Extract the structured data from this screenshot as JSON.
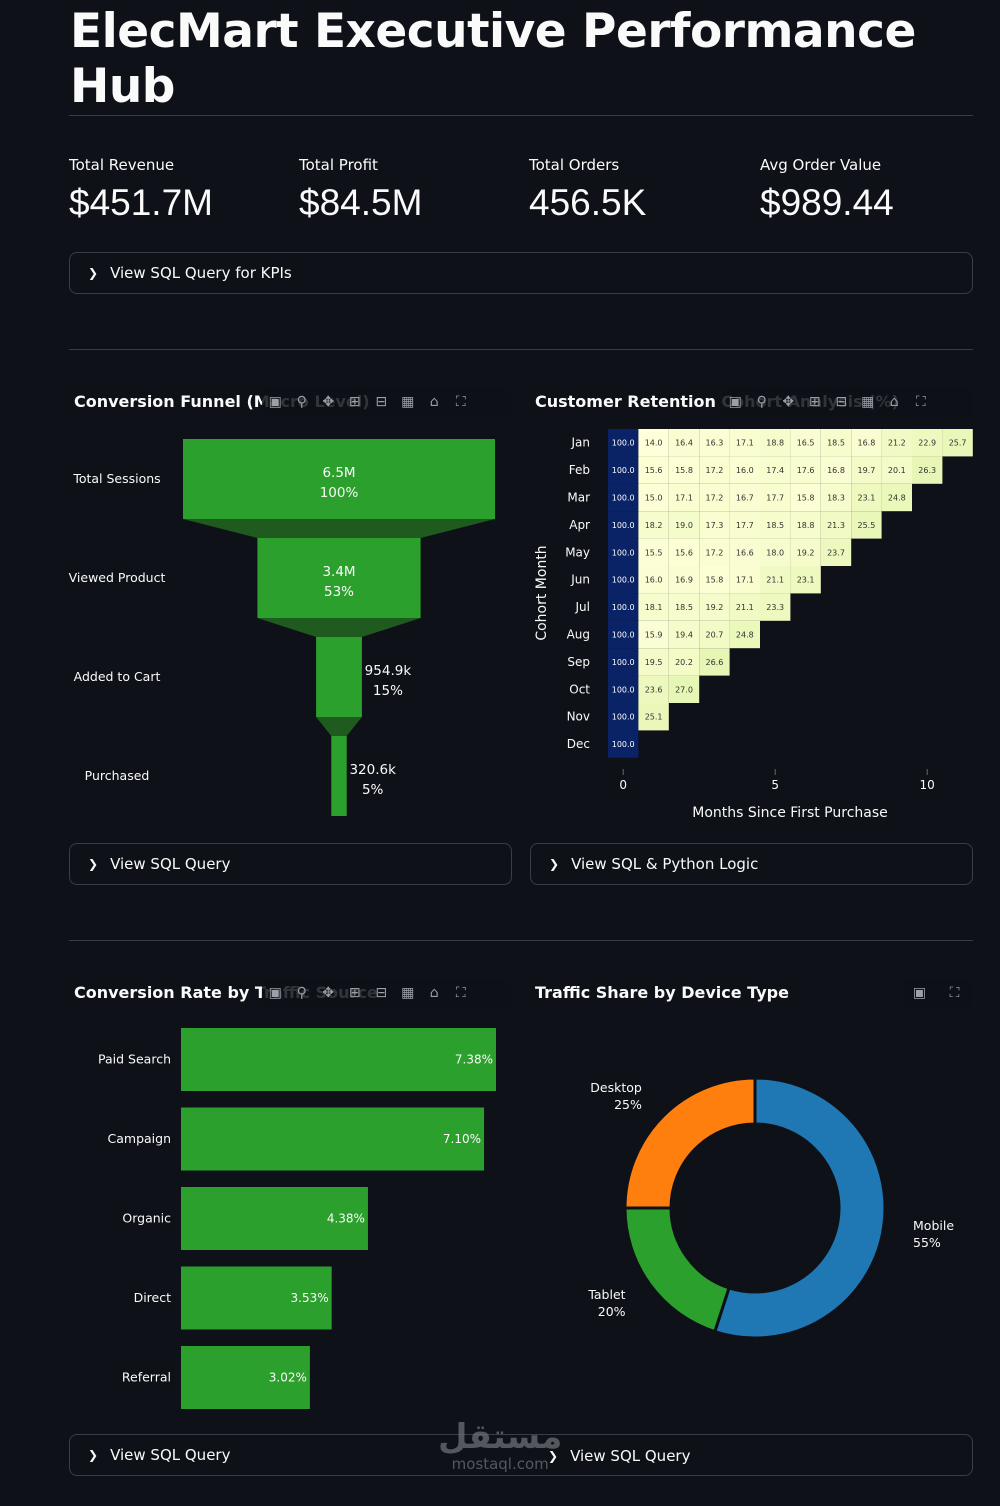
{
  "page": {
    "title": "ElecMart Executive Performance Hub"
  },
  "kpis": [
    {
      "label": "Total Revenue",
      "value": "$451.7M"
    },
    {
      "label": "Total Profit",
      "value": "$84.5M"
    },
    {
      "label": "Total Orders",
      "value": "456.5K"
    },
    {
      "label": "Avg Order Value",
      "value": "$989.44"
    }
  ],
  "expanders": {
    "kpi_sql": "View SQL Query for KPIs",
    "funnel_sql": "View SQL Query",
    "cohort_sql": "View SQL & Python Logic",
    "traffic_sql": "View SQL Query",
    "device_sql": "View SQL Query"
  },
  "colors": {
    "background": "#0e1117",
    "green": "#2ca02c",
    "blue": "#1f77b4",
    "orange": "#ff7f0e",
    "heat_low": "#ffffd9",
    "heat_high": "#081d58"
  },
  "toolbar_icons": [
    "camera-icon",
    "zoom-icon",
    "pan-icon",
    "zoom-in-icon",
    "zoom-out-icon",
    "autoscale-icon",
    "home-icon",
    "fullscreen-icon"
  ],
  "watermark": {
    "arabic": "مستقل",
    "latin": "mostaql.com"
  },
  "chart_data": [
    {
      "type": "funnel",
      "title": "Conversion Funnel (Macro Level)",
      "stages": [
        "Total Sessions",
        "Viewed Product",
        "Added to Cart",
        "Purchased"
      ],
      "values": [
        6500000,
        3400000,
        954900,
        320600
      ],
      "value_labels": [
        "6.5M",
        "3.4M",
        "954.9k",
        "320.6k"
      ],
      "percent_labels": [
        "100%",
        "53%",
        "15%",
        "5%"
      ],
      "color": "#2ca02c"
    },
    {
      "type": "heatmap",
      "title": "Customer Retention Cohort Analysis (%)",
      "xlabel": "Months Since First Purchase",
      "ylabel": "Cohort Month",
      "x_ticks": [
        "0",
        "5",
        "10"
      ],
      "rows": [
        "Jan",
        "Feb",
        "Mar",
        "Apr",
        "May",
        "Jun",
        "Jul",
        "Aug",
        "Sep",
        "Oct",
        "Nov",
        "Dec"
      ],
      "values": [
        [
          "100.0",
          "14.0",
          "16.4",
          "16.3",
          "17.1",
          "18.8",
          "16.5",
          "18.5",
          "16.8",
          "21.2",
          "22.9",
          "25.7"
        ],
        [
          "100.0",
          "15.6",
          "15.8",
          "17.2",
          "16.0",
          "17.4",
          "17.6",
          "16.8",
          "19.7",
          "20.1",
          "26.3"
        ],
        [
          "100.0",
          "15.0",
          "17.1",
          "17.2",
          "16.7",
          "17.7",
          "15.8",
          "18.3",
          "23.1",
          "24.8"
        ],
        [
          "100.0",
          "18.2",
          "19.0",
          "17.3",
          "17.7",
          "18.5",
          "18.8",
          "21.3",
          "25.5"
        ],
        [
          "100.0",
          "15.5",
          "15.6",
          "17.2",
          "16.6",
          "18.0",
          "19.2",
          "23.7"
        ],
        [
          "100.0",
          "16.0",
          "16.9",
          "15.8",
          "17.1",
          "21.1",
          "23.1"
        ],
        [
          "100.0",
          "18.1",
          "18.5",
          "19.2",
          "21.1",
          "23.3"
        ],
        [
          "100.0",
          "15.9",
          "19.4",
          "20.7",
          "24.8"
        ],
        [
          "100.0",
          "19.5",
          "20.2",
          "26.6"
        ],
        [
          "100.0",
          "23.6",
          "27.0"
        ],
        [
          "100.0",
          "25.1"
        ],
        [
          "100.0"
        ]
      ]
    },
    {
      "type": "bar",
      "orientation": "horizontal",
      "title": "Conversion Rate by Traffic Source",
      "categories": [
        "Paid Search",
        "Campaign",
        "Organic",
        "Direct",
        "Referral"
      ],
      "values": [
        7.38,
        7.1,
        4.38,
        3.53,
        3.02
      ],
      "labels": [
        "7.38%",
        "7.10%",
        "4.38%",
        "3.53%",
        "3.02%"
      ],
      "color": "#2ca02c"
    },
    {
      "type": "pie",
      "hole": true,
      "title": "Traffic Share by Device Type",
      "labels": [
        "Mobile",
        "Tablet",
        "Desktop"
      ],
      "values": [
        55,
        20,
        25
      ],
      "percent_labels": [
        "55%",
        "20%",
        "25%"
      ],
      "colors": [
        "#1f77b4",
        "#2ca02c",
        "#ff7f0e"
      ]
    }
  ]
}
